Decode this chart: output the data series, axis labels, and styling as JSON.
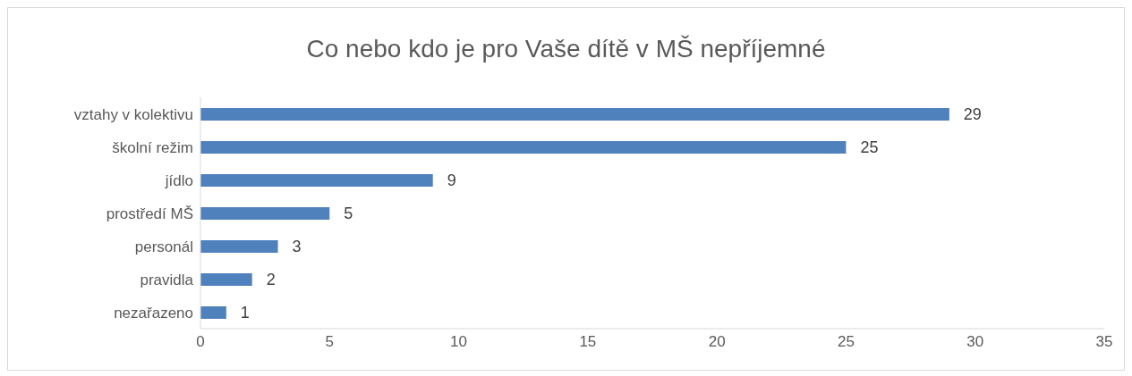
{
  "chart_data": {
    "type": "bar",
    "orientation": "horizontal",
    "title": "Co nebo kdo je pro Vaše dítě v MŠ nepříjemné",
    "categories": [
      "vztahy v kolektivu",
      "školní režim",
      "jídlo",
      "prostředí MŠ",
      "personál",
      "pravidla",
      "nezařazeno"
    ],
    "values": [
      29,
      25,
      9,
      5,
      3,
      2,
      1
    ],
    "color": "#4f81bd",
    "xlim": [
      0,
      35
    ],
    "xticks": [
      0,
      5,
      10,
      15,
      20,
      25,
      30,
      35
    ],
    "grid": false,
    "data_labels": true
  }
}
